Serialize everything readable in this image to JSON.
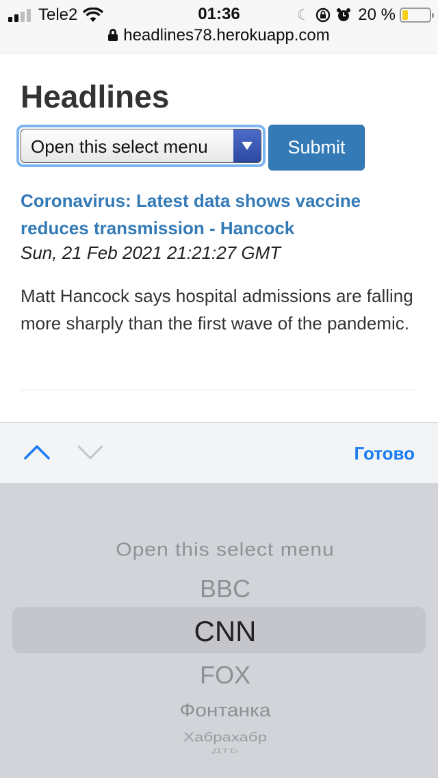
{
  "status_bar": {
    "carrier": "Tele2",
    "time": "01:36",
    "battery_text": "20 %",
    "battery_level": 0.2,
    "icons": [
      "signal-icon",
      "wifi-icon",
      "moon-icon",
      "orientation-lock-icon",
      "alarm-icon",
      "battery-icon"
    ]
  },
  "browser": {
    "url": "headlines78.herokuapp.com"
  },
  "page": {
    "title": "Headlines",
    "select_value": "Open this select menu",
    "submit_label": "Submit"
  },
  "article": {
    "title": "Coronavirus: Latest data shows vaccine reduces transmission - Hancock",
    "date": "Sun, 21 Feb 2021 21:21:27 GMT",
    "description": "Matt Hancock says hospital admissions are falling more sharply than the first wave of the pandemic."
  },
  "picker": {
    "done_label": "Готово",
    "options": [
      "Open this select menu",
      "BBC",
      "CNN",
      "FOX",
      "Фонтанка",
      "Хабрахабр",
      "ДТБ"
    ],
    "selected": "CNN"
  },
  "colors": {
    "link": "#337ab7",
    "button": "#337ab7",
    "done": "#1a7cf2",
    "picker_bg": "#d2d4d9"
  }
}
